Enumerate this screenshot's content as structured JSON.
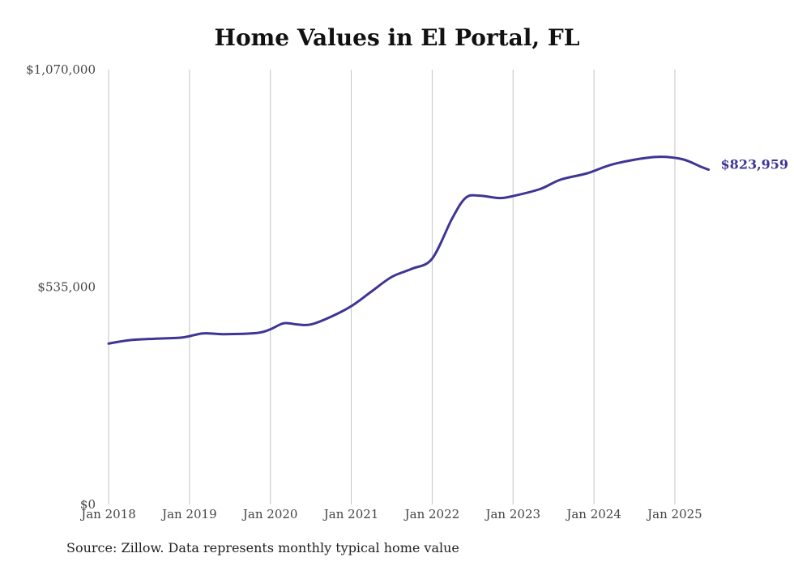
{
  "chart_data": {
    "type": "line",
    "title": "Home Values in El Portal, FL",
    "source": "Source: Zillow. Data represents monthly typical home value",
    "xlabel": "",
    "ylabel": "",
    "ylim": [
      0,
      1070000
    ],
    "yticks": [
      0,
      535000,
      1070000
    ],
    "ytick_labels": [
      "$0",
      "$535,000",
      "$1,070,000"
    ],
    "xticks": [
      2018,
      2019,
      2020,
      2021,
      2022,
      2023,
      2024,
      2025
    ],
    "xtick_labels": [
      "Jan 2018",
      "Jan 2019",
      "Jan 2020",
      "Jan 2021",
      "Jan 2022",
      "Jan 2023",
      "Jan 2024",
      "Jan 2025"
    ],
    "grid": "vertical",
    "end_label": "$823,959",
    "series": [
      {
        "color": "#3f3594",
        "points": [
          {
            "x": "Jan 2018",
            "y": 396000
          },
          {
            "x": "Apr 2018",
            "y": 404000
          },
          {
            "x": "Aug 2018",
            "y": 408000
          },
          {
            "x": "Dec 2018",
            "y": 411000
          },
          {
            "x": "Mar 2019",
            "y": 421000
          },
          {
            "x": "Jun 2019",
            "y": 419000
          },
          {
            "x": "Nov 2019",
            "y": 422000
          },
          {
            "x": "Jan 2020",
            "y": 431000
          },
          {
            "x": "Mar 2020",
            "y": 446000
          },
          {
            "x": "May 2020",
            "y": 443000
          },
          {
            "x": "Jul 2020",
            "y": 443000
          },
          {
            "x": "Oct 2020",
            "y": 462000
          },
          {
            "x": "Jan 2021",
            "y": 488000
          },
          {
            "x": "Apr 2021",
            "y": 524000
          },
          {
            "x": "Jul 2021",
            "y": 560000
          },
          {
            "x": "Oct 2021",
            "y": 580000
          },
          {
            "x": "Jan 2022",
            "y": 605000
          },
          {
            "x": "Apr 2022",
            "y": 705000
          },
          {
            "x": "Jun 2022",
            "y": 755000
          },
          {
            "x": "Aug 2022",
            "y": 760000
          },
          {
            "x": "Nov 2022",
            "y": 754000
          },
          {
            "x": "Jan 2023",
            "y": 759000
          },
          {
            "x": "May 2023",
            "y": 776000
          },
          {
            "x": "Aug 2023",
            "y": 799000
          },
          {
            "x": "Dec 2023",
            "y": 815000
          },
          {
            "x": "Apr 2024",
            "y": 838000
          },
          {
            "x": "Oct 2024",
            "y": 855000
          },
          {
            "x": "Feb 2025",
            "y": 850000
          },
          {
            "x": "May 2025",
            "y": 830000
          },
          {
            "x": "Jun 2025",
            "y": 823959
          }
        ]
      }
    ]
  }
}
